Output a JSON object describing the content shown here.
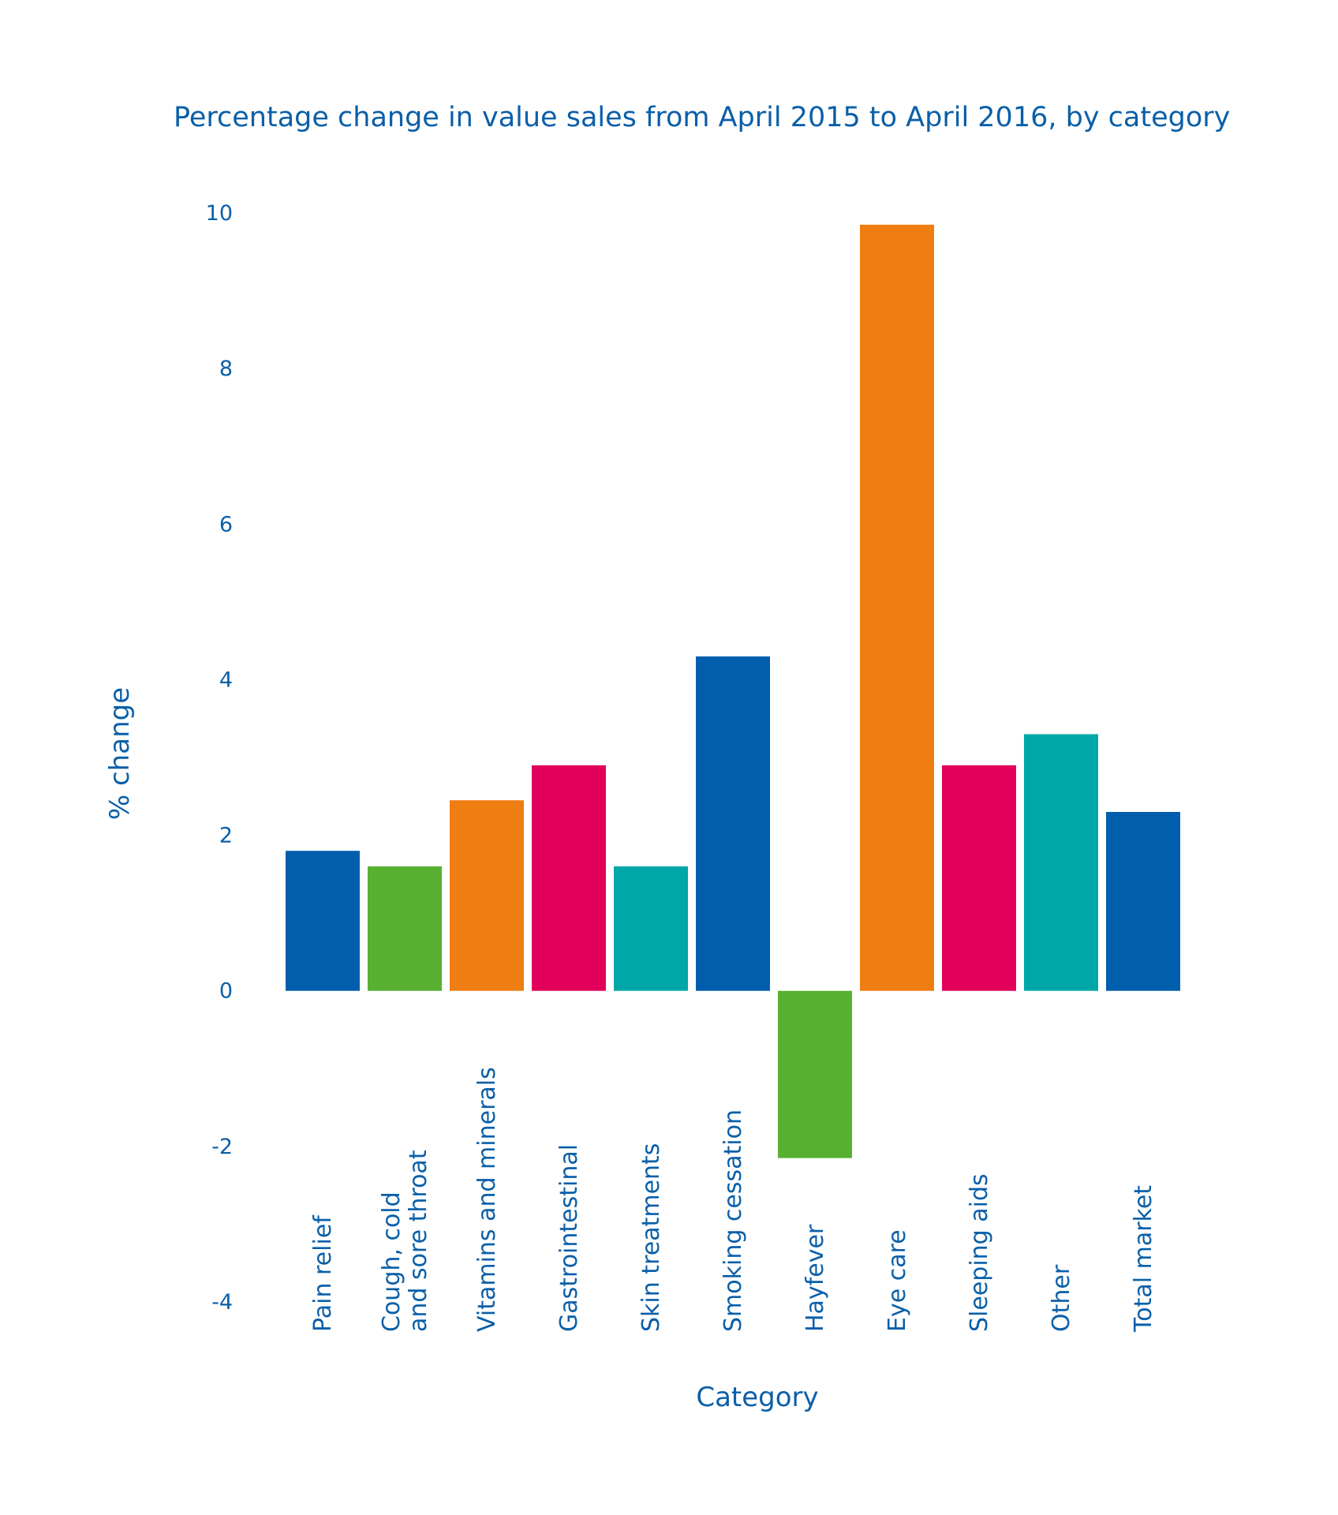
{
  "chart_data": {
    "type": "bar",
    "title": "Percentage change in value sales from April 2015 to April 2016, by category",
    "xlabel": "Category",
    "ylabel": "% change",
    "ylim": [
      -4,
      10
    ],
    "yticks": [
      10,
      8,
      6,
      4,
      2,
      0,
      -2,
      -4
    ],
    "grid": false,
    "categories": [
      [
        "Pain relief"
      ],
      [
        "Cough, cold",
        "and sore throat"
      ],
      [
        "Vitamins and minerals"
      ],
      [
        "Gastrointestinal"
      ],
      [
        "Skin treatments"
      ],
      [
        "Smoking cessation"
      ],
      [
        "Hayfever"
      ],
      [
        "Eye care"
      ],
      [
        "Sleeping aids"
      ],
      [
        "Other"
      ],
      [
        "Total market"
      ]
    ],
    "values": [
      1.8,
      1.6,
      2.45,
      2.9,
      1.6,
      4.3,
      -2.15,
      9.85,
      2.9,
      3.3,
      2.3
    ],
    "colors": [
      "#005eac",
      "#58b031",
      "#ee7d12",
      "#e2005a",
      "#00a7a8",
      "#005eac",
      "#58b031",
      "#ee7d12",
      "#e2005a",
      "#00a7a8",
      "#005eac"
    ]
  }
}
